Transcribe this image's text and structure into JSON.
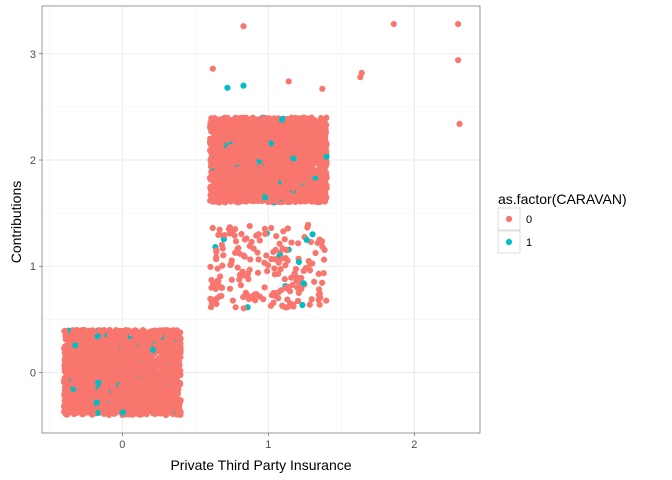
{
  "chart_data": {
    "type": "scatter",
    "xlabel": "Private Third Party Insurance",
    "ylabel": "Contributions",
    "x_ticks": [
      "0",
      "1",
      "2"
    ],
    "y_ticks": [
      "0",
      "1",
      "2",
      "3"
    ],
    "xlim": [
      -0.55,
      2.45
    ],
    "ylim": [
      -0.57,
      3.45
    ],
    "grid": true,
    "jitter": true,
    "legend": {
      "title": "as.factor(CARAVAN)",
      "position": "right",
      "entries": [
        {
          "label": "0",
          "color": "#F8766D"
        },
        {
          "label": "1",
          "color": "#00BFC4"
        }
      ]
    },
    "clusters": [
      {
        "x": 0,
        "y": 0,
        "x_range": [
          -0.4,
          0.4
        ],
        "y_range": [
          -0.4,
          0.4
        ],
        "density": "dense",
        "series": [
          "0",
          "1"
        ]
      },
      {
        "x": 1,
        "y": 1,
        "x_range": [
          -0.4,
          0.4
        ],
        "y_range": [
          -0.4,
          0.4
        ],
        "density": "sparse",
        "series": [
          "0",
          "1"
        ]
      },
      {
        "x": 1,
        "y": 2,
        "x_range": [
          -0.4,
          0.4
        ],
        "y_range": [
          -0.4,
          0.4
        ],
        "density": "dense",
        "series": [
          "0",
          "1"
        ]
      }
    ],
    "series": [
      {
        "name": "0",
        "color": "#F8766D",
        "points": [
          [
            0.83,
            3.26
          ],
          [
            1.86,
            3.28
          ],
          [
            2.3,
            3.28
          ],
          [
            0.62,
            2.86
          ],
          [
            1.14,
            2.74
          ],
          [
            1.37,
            2.67
          ],
          [
            1.63,
            2.78
          ],
          [
            1.64,
            2.82
          ],
          [
            2.3,
            2.94
          ],
          [
            2.31,
            2.34
          ]
        ]
      },
      {
        "name": "1",
        "color": "#00BFC4",
        "points": [
          [
            0.72,
            2.68
          ],
          [
            0.83,
            2.7
          ]
        ]
      }
    ]
  }
}
